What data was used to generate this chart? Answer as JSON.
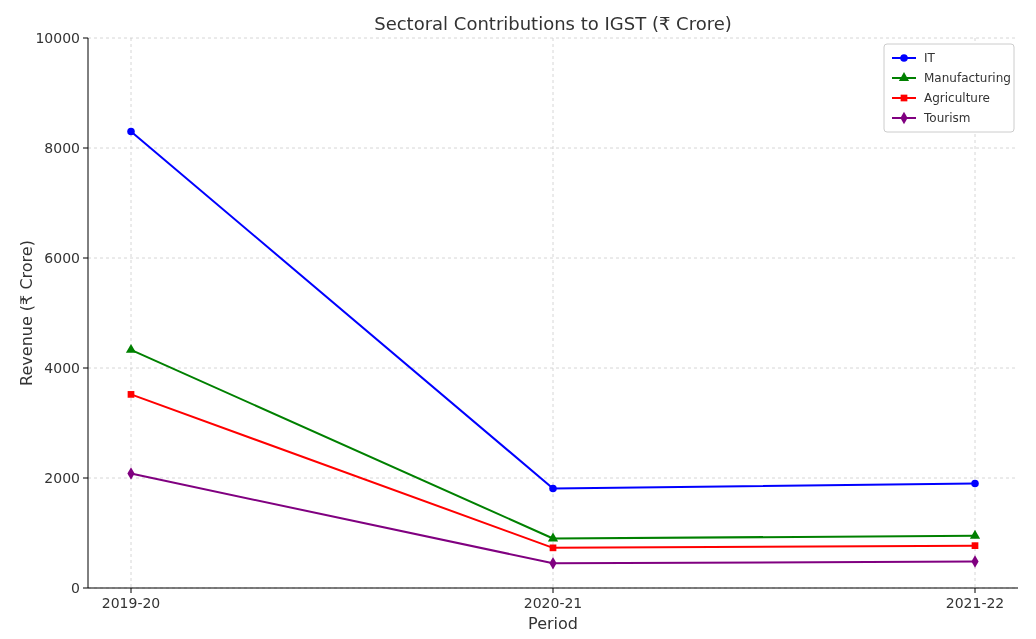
{
  "chart_data": {
    "type": "line",
    "title": "Sectoral Contributions to IGST (₹ Crore)",
    "xlabel": "Period",
    "ylabel": "Revenue (₹ Crore)",
    "categories": [
      "2019-20",
      "2020-21",
      "2021-22"
    ],
    "series": [
      {
        "name": "IT",
        "color": "#0000ff",
        "marker": "circle",
        "values": [
          8300,
          1810,
          1900
        ]
      },
      {
        "name": "Manufacturing",
        "color": "#008000",
        "marker": "triangle",
        "values": [
          4330,
          900,
          950
        ]
      },
      {
        "name": "Agriculture",
        "color": "#ff0000",
        "marker": "square",
        "values": [
          3520,
          730,
          770
        ]
      },
      {
        "name": "Tourism",
        "color": "#800080",
        "marker": "diamond",
        "values": [
          2080,
          450,
          480
        ]
      }
    ],
    "ylim": [
      0,
      10000
    ],
    "yticks": [
      0,
      2000,
      4000,
      6000,
      8000,
      10000
    ],
    "grid": true,
    "legend": "top right",
    "line_style": "solid"
  }
}
